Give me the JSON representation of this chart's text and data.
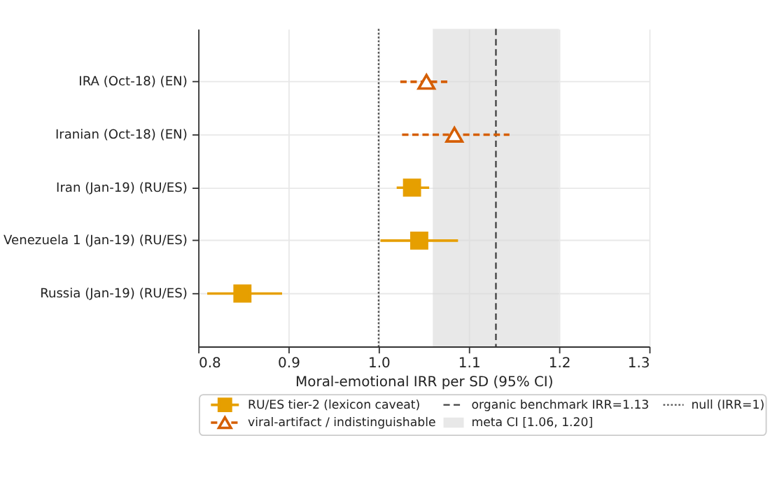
{
  "chart_data": {
    "type": "scatter",
    "orientation": "horizontal",
    "categories": [
      "IRA (Oct-18) (EN)",
      "Iranian (Oct-18) (EN)",
      "Iran (Jan-19) (RU/ES)",
      "Venezuela 1 (Jan-19) (RU/ES)",
      "Russia (Jan-19) (RU/ES)"
    ],
    "xlabel": "Moral-emotional IRR per SD (95% CI)",
    "xlim": [
      0.8,
      1.3
    ],
    "xticks": [
      0.8,
      0.9,
      {
        "value": 1.0,
        "label": "1.0"
      },
      1.1,
      1.2,
      1.3
    ],
    "grid": true,
    "legend": "bottom",
    "series": [
      {
        "name": "RU/ES tier-2 (lexicon caveat)",
        "color": "#e69f00",
        "marker": "square",
        "line_style": "solid",
        "values": [
          null,
          null,
          1.037,
          1.045,
          0.849
        ],
        "errors": [
          null,
          null,
          [
            1.02,
            1.056
          ],
          [
            1.002,
            1.088
          ],
          [
            0.81,
            0.893
          ]
        ]
      },
      {
        "name": "viral-artifact / indistinguishable",
        "color": "#d55e00",
        "marker": "triangle",
        "line_style": "dashed",
        "values": [
          1.053,
          1.084,
          null,
          null,
          null
        ],
        "errors": [
          [
            1.024,
            1.079
          ],
          [
            1.026,
            1.145
          ],
          null,
          null,
          null
        ]
      }
    ],
    "ref_lines": [
      {
        "axis": "x",
        "value": 1.13,
        "label": "organic benchmark IRR=1.13",
        "color": "#444444",
        "line_style": "dashed"
      },
      {
        "axis": "x",
        "value": 1.0,
        "label": "null (IRR=1)",
        "color": "#555555",
        "line_style": "dotted"
      }
    ],
    "bands": [
      {
        "axis": "x",
        "from": 1.06,
        "to": 1.2,
        "label": "meta CI [1.06, 1.20]",
        "color": "#d9d9d9"
      }
    ]
  }
}
